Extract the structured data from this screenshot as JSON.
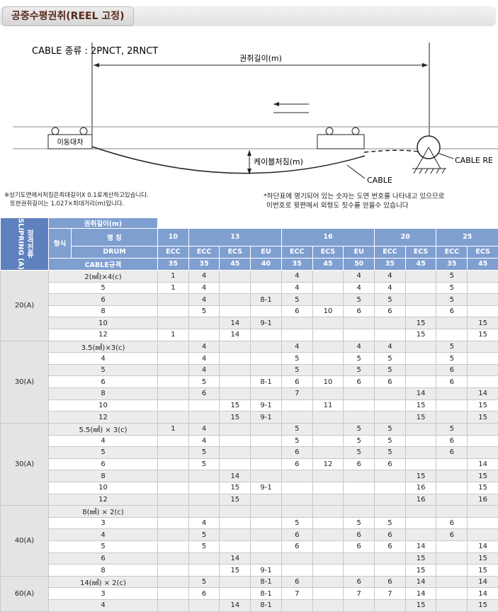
{
  "header": {
    "title": "공중수평권취(REEL 고정)"
  },
  "diagram": {
    "cable_type": "CABLE 종류 : 2PNCT, 2RNCT",
    "length_label": "권취길이(m)",
    "cart_label": "이동대차",
    "sag_label": "케이블처짐(m)",
    "cable_label": "CABLE",
    "reel_label": "CABLE RE"
  },
  "notes": {
    "left": [
      "※상기도면에서처짐은최대길이X 0.1로계산하고있습니다.",
      "또한권취길이는 1.027×최대거리(m)입니다."
    ],
    "right": [
      "*하단표에 명기되어 있는 숫자는 도면 번호를 나타내고 있으므로",
      "이번호로 윗편에서 외형도 칫수를 얻을수 있습니다"
    ]
  },
  "table": {
    "current_label": "정격전류",
    "slipring_label": "SLIPRING (A)",
    "length_label": "권취길이(m)",
    "type_label": "형식",
    "name_label": "명 칭",
    "drum_label": "DRUM",
    "spec_label": "CABLE규격",
    "lengths": [
      {
        "label": 10,
        "drums": [
          "ECC"
        ],
        "specs": [
          35
        ]
      },
      {
        "label": 13,
        "drums": [
          "ECC",
          "ECS",
          "EU"
        ],
        "specs": [
          35,
          45,
          40
        ]
      },
      {
        "label": 16,
        "drums": [
          "ECC",
          "ECS",
          "EU"
        ],
        "specs": [
          35,
          45,
          50
        ]
      },
      {
        "label": 20,
        "drums": [
          "ECC",
          "ECS"
        ],
        "specs": [
          35,
          45
        ]
      },
      {
        "label": 25,
        "drums": [
          "ECC",
          "ECS"
        ],
        "specs": [
          35,
          45
        ]
      }
    ],
    "groups": [
      {
        "current": "20(A)",
        "rows": [
          {
            "label": "2(㎟)×4(c)",
            "cells": [
              1,
              4,
              null,
              null,
              4,
              null,
              4,
              4,
              null,
              5,
              null
            ]
          },
          {
            "label": 5,
            "cells": [
              1,
              4,
              null,
              null,
              4,
              null,
              4,
              4,
              null,
              5,
              null
            ]
          },
          {
            "label": 6,
            "cells": [
              null,
              4,
              null,
              "8-1",
              5,
              null,
              5,
              5,
              null,
              5,
              null
            ]
          },
          {
            "label": 8,
            "cells": [
              null,
              5,
              null,
              null,
              6,
              10,
              6,
              6,
              null,
              6,
              null
            ]
          },
          {
            "label": 10,
            "cells": [
              null,
              null,
              14,
              "9-1",
              null,
              null,
              null,
              null,
              15,
              null,
              15
            ]
          },
          {
            "label": 12,
            "cells": [
              1,
              null,
              14,
              null,
              null,
              null,
              null,
              null,
              15,
              null,
              15
            ]
          }
        ]
      },
      {
        "current": "30(A)",
        "rows": [
          {
            "label": "3.5(㎟)×3(c)",
            "cells": [
              null,
              4,
              null,
              null,
              4,
              null,
              4,
              4,
              null,
              5,
              null
            ]
          },
          {
            "label": 4,
            "cells": [
              null,
              4,
              null,
              null,
              5,
              null,
              5,
              5,
              null,
              5,
              null
            ]
          },
          {
            "label": 5,
            "cells": [
              null,
              4,
              null,
              null,
              5,
              null,
              5,
              5,
              null,
              6,
              null
            ]
          },
          {
            "label": 6,
            "cells": [
              null,
              5,
              null,
              "8-1",
              6,
              10,
              6,
              6,
              null,
              6,
              null
            ]
          },
          {
            "label": 8,
            "cells": [
              null,
              6,
              null,
              null,
              7,
              null,
              null,
              null,
              14,
              null,
              14
            ]
          },
          {
            "label": 10,
            "cells": [
              null,
              null,
              15,
              "9-1",
              null,
              11,
              null,
              null,
              15,
              null,
              15
            ]
          },
          {
            "label": 12,
            "cells": [
              null,
              null,
              15,
              "9-1",
              null,
              null,
              null,
              null,
              15,
              null,
              15
            ]
          }
        ]
      },
      {
        "current": "30(A)",
        "rows": [
          {
            "label": "5.5(㎟) × 3(c)",
            "cells": [
              1,
              4,
              null,
              null,
              5,
              null,
              5,
              5,
              null,
              5,
              null
            ]
          },
          {
            "label": 4,
            "cells": [
              null,
              4,
              null,
              null,
              5,
              null,
              5,
              5,
              null,
              6,
              null
            ]
          },
          {
            "label": 5,
            "cells": [
              null,
              5,
              null,
              null,
              6,
              null,
              5,
              5,
              null,
              6,
              null
            ]
          },
          {
            "label": 6,
            "cells": [
              null,
              5,
              null,
              null,
              6,
              12,
              6,
              6,
              null,
              null,
              14
            ]
          },
          {
            "label": 8,
            "cells": [
              null,
              null,
              14,
              null,
              null,
              null,
              null,
              null,
              15,
              null,
              15
            ]
          },
          {
            "label": 10,
            "cells": [
              null,
              null,
              15,
              "9-1",
              null,
              null,
              null,
              null,
              16,
              null,
              15
            ]
          },
          {
            "label": 12,
            "cells": [
              null,
              null,
              15,
              null,
              null,
              null,
              null,
              null,
              16,
              null,
              16
            ]
          }
        ]
      },
      {
        "current": "40(A)",
        "rows": [
          {
            "label": "8(㎟) × 2(c)",
            "cells": [
              null,
              null,
              null,
              null,
              null,
              null,
              null,
              null,
              null,
              null,
              null
            ]
          },
          {
            "label": 3,
            "cells": [
              null,
              4,
              null,
              null,
              5,
              null,
              5,
              5,
              null,
              6,
              null
            ]
          },
          {
            "label": 4,
            "cells": [
              null,
              5,
              null,
              null,
              6,
              null,
              6,
              6,
              null,
              6,
              null
            ]
          },
          {
            "label": 5,
            "cells": [
              null,
              5,
              null,
              null,
              6,
              null,
              6,
              6,
              14,
              null,
              14
            ]
          },
          {
            "label": 6,
            "cells": [
              null,
              null,
              14,
              null,
              null,
              null,
              null,
              null,
              15,
              null,
              15
            ]
          },
          {
            "label": 8,
            "cells": [
              null,
              null,
              15,
              "9-1",
              null,
              null,
              null,
              null,
              15,
              null,
              15
            ]
          }
        ]
      },
      {
        "current": "60(A)",
        "rows": [
          {
            "label": "14(㎟) × 2(c)",
            "cells": [
              null,
              5,
              null,
              "8-1",
              6,
              null,
              6,
              6,
              14,
              null,
              14
            ]
          },
          {
            "label": 3,
            "cells": [
              null,
              6,
              null,
              "8-1",
              7,
              null,
              7,
              7,
              14,
              null,
              14
            ]
          },
          {
            "label": 4,
            "cells": [
              null,
              null,
              14,
              "8-1",
              null,
              null,
              null,
              null,
              15,
              null,
              15
            ]
          }
        ]
      }
    ]
  }
}
